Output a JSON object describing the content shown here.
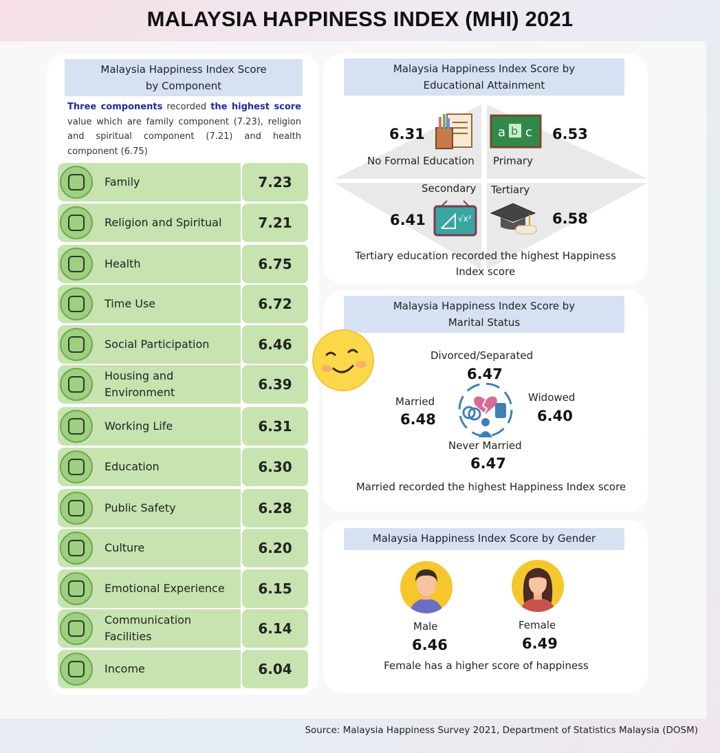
{
  "title": "MALAYSIA HAPPINESS INDEX (MHI) 2021",
  "component_panel": {
    "header_line1": "Malaysia Happiness Index Score",
    "header_line2": "by Component",
    "intro_hl1": "Three components",
    "intro_t1": " recorded ",
    "intro_hl2": "the highest score",
    "intro_t2": " value which are family component (7.23), religion and spiritual component (7.21) and health component (6.75)",
    "rows": [
      {
        "label": "Family",
        "score": "7.23",
        "icon": "family-icon"
      },
      {
        "label": "Religion and Spiritual",
        "score": "7.21",
        "icon": "praying-hands-icon"
      },
      {
        "label": "Health",
        "score": "6.75",
        "icon": "heartbeat-icon"
      },
      {
        "label": "Time Use",
        "score": "6.72",
        "icon": "clock-checklist-icon"
      },
      {
        "label": "Social Participation",
        "score": "6.46",
        "icon": "group-meeting-icon"
      },
      {
        "label": "Housing and Environment",
        "score": "6.39",
        "icon": "house-tree-icon"
      },
      {
        "label": "Working Life",
        "score": "6.31",
        "icon": "worker-icon"
      },
      {
        "label": "Education",
        "score": "6.30",
        "icon": "graduation-cap-icon"
      },
      {
        "label": "Public Safety",
        "score": "6.28",
        "icon": "police-officer-icon"
      },
      {
        "label": "Culture",
        "score": "6.20",
        "icon": "theatre-masks-icon"
      },
      {
        "label": "Emotional Experience",
        "score": "6.15",
        "icon": "emotions-icon"
      },
      {
        "label": "Communication Facilities",
        "score": "6.14",
        "icon": "router-icon"
      },
      {
        "label": "Income",
        "score": "6.04",
        "icon": "cash-icon"
      }
    ]
  },
  "education_panel": {
    "header_line1": "Malaysia Happiness Index Score by",
    "header_line2": "Educational Attainment",
    "no_formal": {
      "label": "No Formal Education",
      "score": "6.31"
    },
    "primary": {
      "label": "Primary",
      "score": "6.53"
    },
    "secondary": {
      "label": "Secondary",
      "score": "6.41"
    },
    "tertiary": {
      "label": "Tertiary",
      "score": "6.58"
    },
    "note_line1": "Tertiary education recorded the highest Happiness",
    "note_line2": "Index score"
  },
  "marital_panel": {
    "header_line1": "Malaysia Happiness Index Score by",
    "header_line2": "Marital Status",
    "divorced": {
      "label": "Divorced/Separated",
      "score": "6.47"
    },
    "married": {
      "label": "Married",
      "score": "6.48"
    },
    "widowed": {
      "label": "Widowed",
      "score": "6.40"
    },
    "never_married": {
      "label": "Never Married",
      "score": "6.47"
    },
    "note": "Married recorded the highest Happiness Index score"
  },
  "gender_panel": {
    "header": "Malaysia Happiness Index Score by Gender",
    "male": {
      "label": "Male",
      "score": "6.46"
    },
    "female": {
      "label": "Female",
      "score": "6.49"
    },
    "note": "Female has a higher score of happiness"
  },
  "source": "Source: Malaysia Happiness Survey 2021, Department of Statistics Malaysia (DOSM)",
  "colors": {
    "row_green": "#c6e3b0",
    "header_blue": "#d6e1f2",
    "highlight_text": "#1f2a9c",
    "avatar_yellow": "#f6c72c"
  }
}
